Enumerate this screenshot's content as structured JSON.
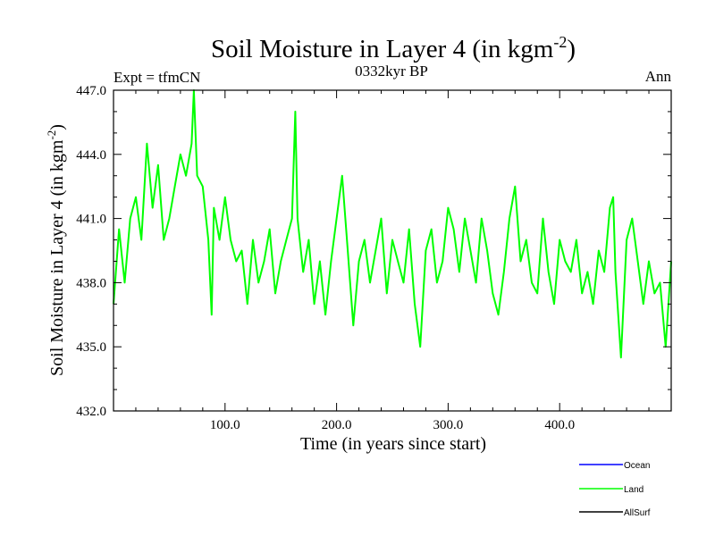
{
  "chart_data": {
    "type": "line",
    "title": "Soil Moisture in Layer 4 (in kgm",
    "title_superscript": "-2",
    "title_suffix": ")",
    "subtitle_left": "Expt = tfmCN",
    "subtitle_center": "0332kyr BP",
    "subtitle_right": "Ann",
    "xlabel": "Time (in years since start)",
    "ylabel": "Soil Moisture in Layer 4 (in kgm",
    "ylabel_superscript": "-2",
    "ylabel_suffix": ")",
    "xlim": [
      0,
      500
    ],
    "ylim": [
      432,
      447
    ],
    "xticks": [
      100,
      200,
      300,
      400
    ],
    "xtick_labels": [
      "100.0",
      "200.0",
      "300.0",
      "400.0"
    ],
    "yticks": [
      432,
      435,
      438,
      441,
      444,
      447
    ],
    "ytick_labels": [
      "432.0",
      "435.0",
      "438.0",
      "441.0",
      "444.0",
      "447.0"
    ],
    "grid": false,
    "legend_placement": "bottom-right",
    "series": [
      {
        "name": "Land",
        "color": "#00ff00",
        "x": [
          0,
          5,
          10,
          15,
          20,
          25,
          30,
          35,
          40,
          45,
          50,
          55,
          60,
          65,
          70,
          72,
          75,
          80,
          85,
          88,
          90,
          95,
          100,
          105,
          110,
          115,
          120,
          125,
          130,
          135,
          140,
          145,
          150,
          155,
          160,
          163,
          165,
          170,
          175,
          180,
          185,
          190,
          195,
          200,
          205,
          210,
          215,
          220,
          225,
          230,
          235,
          240,
          245,
          250,
          255,
          260,
          265,
          270,
          275,
          280,
          285,
          290,
          295,
          300,
          305,
          310,
          315,
          320,
          325,
          330,
          335,
          340,
          345,
          350,
          355,
          360,
          365,
          370,
          375,
          380,
          385,
          390,
          395,
          400,
          405,
          410,
          415,
          420,
          425,
          430,
          435,
          440,
          445,
          448,
          450,
          455,
          460,
          465,
          470,
          475,
          480,
          485,
          490,
          495,
          500
        ],
        "y": [
          437.0,
          440.5,
          438.0,
          441.0,
          442.0,
          440.0,
          444.5,
          441.5,
          443.5,
          440.0,
          441.0,
          442.5,
          444.0,
          443.0,
          444.5,
          447.0,
          443.0,
          442.5,
          440.0,
          436.5,
          441.5,
          440.0,
          442.0,
          440.0,
          439.0,
          439.5,
          437.0,
          440.0,
          438.0,
          439.0,
          440.5,
          437.5,
          439.0,
          440.0,
          441.0,
          446.0,
          441.0,
          438.5,
          440.0,
          437.0,
          439.0,
          436.5,
          439.0,
          441.0,
          443.0,
          439.5,
          436.0,
          439.0,
          440.0,
          438.0,
          439.5,
          441.0,
          437.5,
          440.0,
          439.0,
          438.0,
          440.5,
          437.0,
          435.0,
          439.5,
          440.5,
          438.0,
          439.0,
          441.5,
          440.5,
          438.5,
          441.0,
          439.5,
          438.0,
          441.0,
          439.5,
          437.5,
          436.5,
          438.5,
          441.0,
          442.5,
          439.0,
          440.0,
          438.0,
          437.5,
          441.0,
          438.5,
          437.0,
          440.0,
          439.0,
          438.5,
          440.0,
          437.5,
          438.5,
          437.0,
          439.5,
          438.5,
          441.5,
          442.0,
          438.5,
          434.5,
          440.0,
          441.0,
          439.0,
          437.0,
          439.0,
          437.5,
          438.0,
          435.0,
          439.0
        ]
      }
    ],
    "legend": [
      {
        "name": "Ocean",
        "color": "#0000ff"
      },
      {
        "name": "Land",
        "color": "#00ff00"
      },
      {
        "name": "AllSurf",
        "color": "#000000"
      }
    ]
  }
}
